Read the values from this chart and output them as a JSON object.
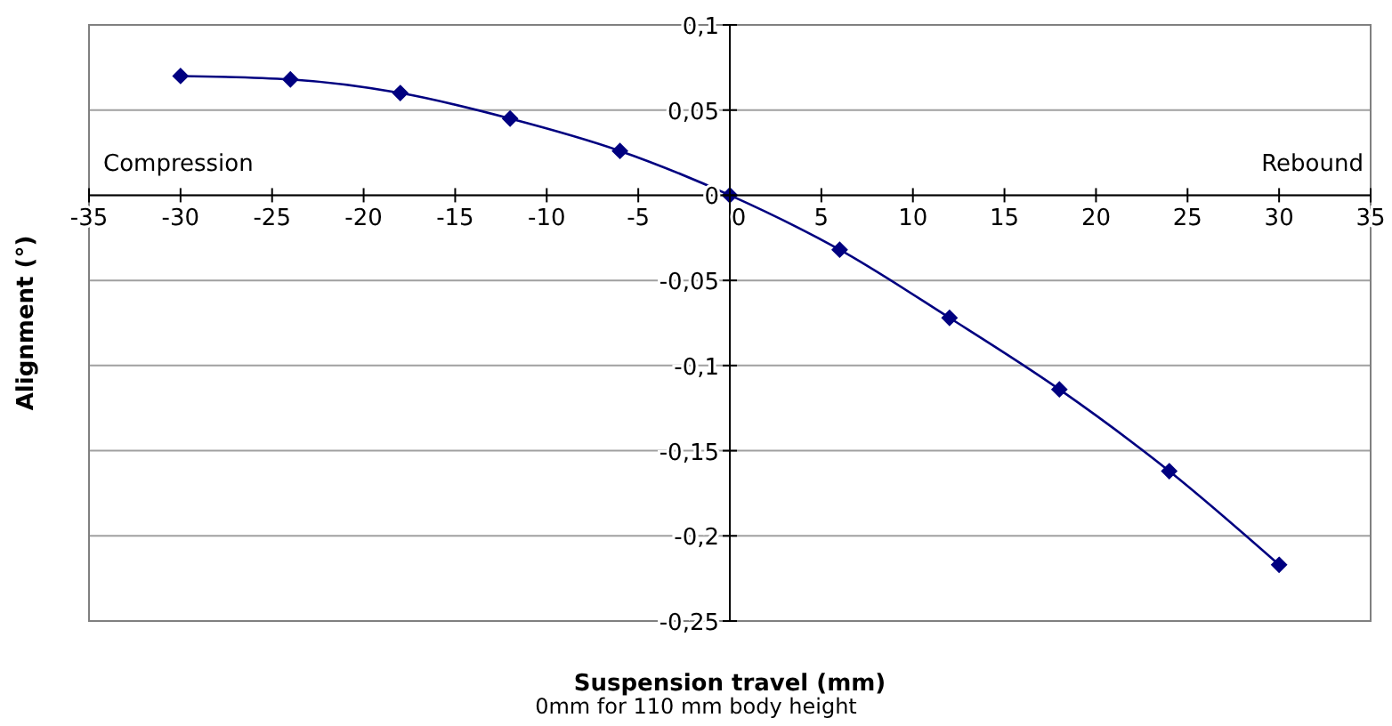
{
  "chart_data": {
    "type": "line",
    "xlabel": "Suspension travel (mm)",
    "ylabel": "Alignment (°)",
    "annotations": [
      "Compression",
      "Rebound",
      "0mm for 110 mm body height"
    ],
    "x": [
      -30,
      -24,
      -18,
      -12,
      -6,
      0,
      6,
      12,
      18,
      24,
      30
    ],
    "series": [
      {
        "color": "#000080",
        "values": [
          0.07,
          0.068,
          0.06,
          0.045,
          0.026,
          0,
          -0.032,
          -0.072,
          -0.114,
          -0.162,
          -0.217
        ]
      }
    ],
    "xlim": [
      -35,
      35
    ],
    "xticks": [
      -35,
      -30,
      -25,
      -20,
      -15,
      -10,
      -5,
      0,
      5,
      10,
      15,
      20,
      25,
      30,
      35
    ],
    "ylim": [
      -0.25,
      0.1
    ],
    "yticks": [
      {
        "value": -0.25,
        "label": "-0,25"
      },
      {
        "value": -0.2,
        "label": "-0,2"
      },
      {
        "value": -0.15,
        "label": "-0,15"
      },
      {
        "value": -0.1,
        "label": "-0,1"
      },
      {
        "value": -0.05,
        "label": "-0,05"
      },
      {
        "value": 0,
        "label": "0"
      },
      {
        "value": 0.05,
        "label": "0,05"
      },
      {
        "value": 0.1,
        "label": "0,1"
      }
    ],
    "grid": "y",
    "marker": "diamond",
    "line_style": "solid",
    "legend": false
  }
}
